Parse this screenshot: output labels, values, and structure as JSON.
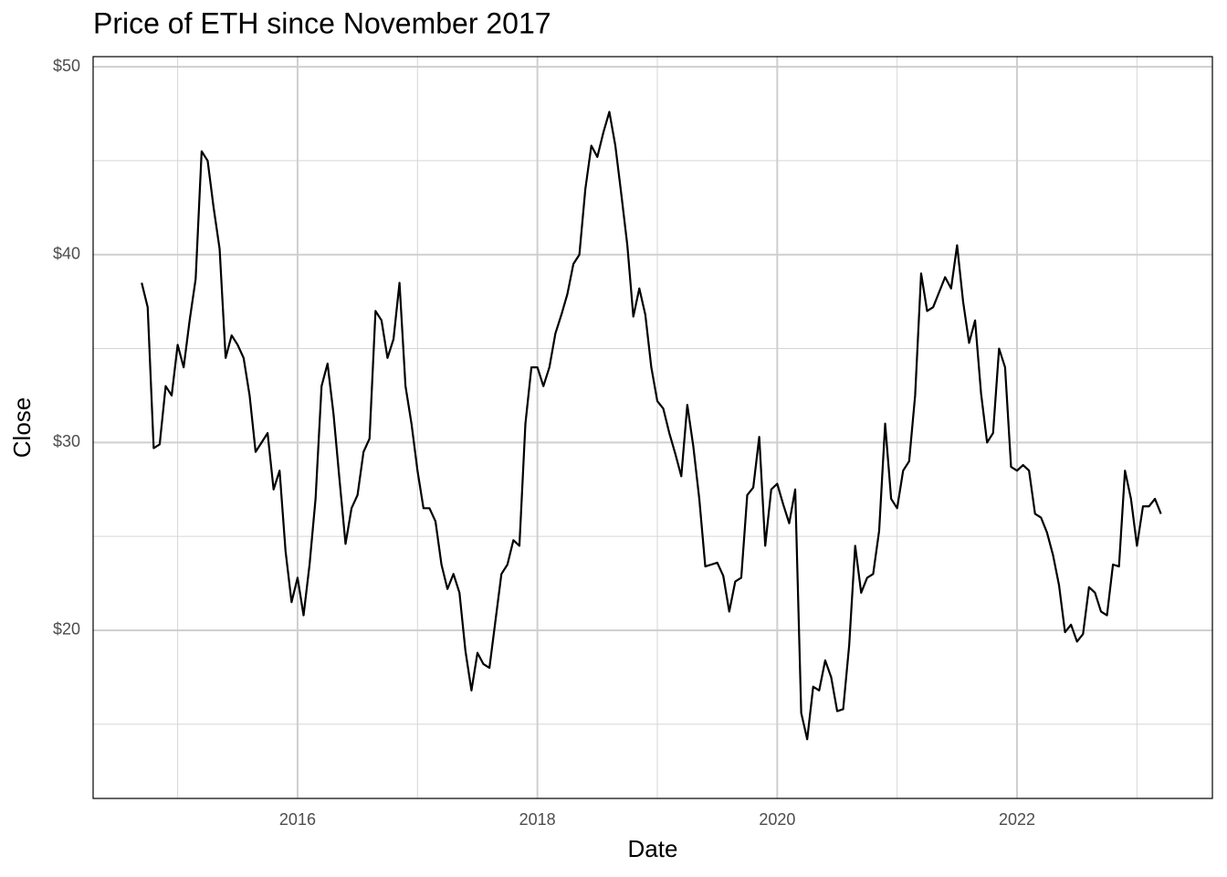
{
  "chart_data": {
    "type": "line",
    "title": "Price of ETH since November 2017",
    "x_label": "Date",
    "y_label": "Close",
    "x": [
      2014.7,
      2014.75,
      2014.8,
      2014.85,
      2014.9,
      2014.95,
      2015,
      2015.05,
      2015.1,
      2015.15,
      2015.2,
      2015.25,
      2015.3,
      2015.35,
      2015.4,
      2015.45,
      2015.5,
      2015.55,
      2015.6,
      2015.65,
      2015.7,
      2015.75,
      2015.8,
      2015.85,
      2015.9,
      2015.95,
      2016,
      2016.05,
      2016.1,
      2016.15,
      2016.2,
      2016.25,
      2016.3,
      2016.35,
      2016.4,
      2016.45,
      2016.5,
      2016.55,
      2016.6,
      2016.65,
      2016.7,
      2016.75,
      2016.8,
      2016.85,
      2016.9,
      2016.95,
      2017,
      2017.05,
      2017.1,
      2017.15,
      2017.2,
      2017.25,
      2017.3,
      2017.35,
      2017.4,
      2017.45,
      2017.5,
      2017.55,
      2017.6,
      2017.65,
      2017.7,
      2017.75,
      2017.8,
      2017.85,
      2017.9,
      2017.95,
      2018,
      2018.05,
      2018.1,
      2018.15,
      2018.2,
      2018.25,
      2018.3,
      2018.35,
      2018.4,
      2018.45,
      2018.5,
      2018.55,
      2018.6,
      2018.65,
      2018.7,
      2018.75,
      2018.8,
      2018.85,
      2018.9,
      2018.95,
      2019,
      2019.05,
      2019.1,
      2019.15,
      2019.2,
      2019.25,
      2019.3,
      2019.35,
      2019.4,
      2019.45,
      2019.5,
      2019.55,
      2019.6,
      2019.65,
      2019.7,
      2019.75,
      2019.8,
      2019.85,
      2019.9,
      2019.95,
      2020,
      2020.05,
      2020.1,
      2020.15,
      2020.2,
      2020.25,
      2020.3,
      2020.35,
      2020.4,
      2020.45,
      2020.5,
      2020.55,
      2020.6,
      2020.65,
      2020.7,
      2020.75,
      2020.8,
      2020.85,
      2020.9,
      2020.95,
      2021,
      2021.05,
      2021.1,
      2021.15,
      2021.2,
      2021.25,
      2021.3,
      2021.35,
      2021.4,
      2021.45,
      2021.5,
      2021.55,
      2021.6,
      2021.65,
      2021.7,
      2021.75,
      2021.8,
      2021.85,
      2021.9,
      2021.95,
      2022,
      2022.05,
      2022.1,
      2022.15,
      2022.2,
      2022.25,
      2022.3,
      2022.35,
      2022.4,
      2022.45,
      2022.5,
      2022.55,
      2022.6,
      2022.65,
      2022.7,
      2022.75,
      2022.8,
      2022.85,
      2022.9,
      2022.95,
      2023,
      2023.05,
      2023.1,
      2023.15,
      2023.2
    ],
    "series": [
      {
        "color": "#000000",
        "values": [
          38.5,
          37.2,
          29.7,
          29.9,
          33,
          32.5,
          35.2,
          34,
          36.5,
          38.7,
          45.5,
          45,
          42.5,
          40.3,
          34.5,
          35.7,
          35.2,
          34.5,
          32.5,
          29.5,
          30,
          30.5,
          27.5,
          28.5,
          24.2,
          21.5,
          22.8,
          20.8,
          23.5,
          27,
          33,
          34.2,
          31.5,
          28,
          24.6,
          26.5,
          27.2,
          29.5,
          30.2,
          37,
          36.5,
          34.5,
          35.5,
          38.5,
          33,
          31,
          28.5,
          26.5,
          26.5,
          25.8,
          23.5,
          22.2,
          23,
          22,
          18.9,
          16.8,
          18.8,
          18.2,
          18,
          20.5,
          23,
          23.5,
          24.8,
          24.5,
          31,
          34,
          34,
          33,
          34,
          35.8,
          36.8,
          37.9,
          39.5,
          40,
          43.5,
          45.8,
          45.2,
          46.5,
          47.6,
          45.8,
          43.2,
          40.5,
          36.7,
          38.2,
          36.8,
          34,
          32.2,
          31.8,
          30.5,
          29.4,
          28.2,
          32,
          29.8,
          27,
          23.4,
          23.5,
          23.6,
          22.9,
          21,
          22.6,
          22.8,
          27.2,
          27.6,
          30.3,
          24.5,
          27.5,
          27.8,
          26.7,
          25.7,
          27.5,
          15.6,
          14.2,
          17,
          16.8,
          18.4,
          17.5,
          15.7,
          15.8,
          19.2,
          24.5,
          22,
          22.8,
          23,
          25.3,
          31,
          27,
          26.5,
          28.5,
          29,
          32.5,
          39,
          37,
          37.2,
          38,
          38.8,
          38.2,
          40.5,
          37.5,
          35.3,
          36.5,
          32.6,
          30,
          30.5,
          35,
          34,
          28.7,
          28.5,
          28.8,
          28.5,
          26.2,
          26,
          25.2,
          24,
          22.4,
          19.9,
          20.3,
          19.4,
          19.8,
          22.3,
          22,
          21,
          20.8,
          23.5,
          23.4,
          28.5,
          27,
          24.5,
          26.6,
          26.6,
          27,
          26.2
        ]
      }
    ],
    "xlim": [
      2014.295,
      2023.629
    ],
    "xticks": [
      2016,
      2018,
      2020,
      2022
    ],
    "ylim": [
      11.05,
      50.54
    ],
    "yticks": [
      {
        "value": 20,
        "label": "$20"
      },
      {
        "value": 30,
        "label": "$30"
      },
      {
        "value": 40,
        "label": "$40"
      },
      {
        "value": 50,
        "label": "$50"
      }
    ],
    "x_minor_gridlines": [
      2015,
      2017,
      2019,
      2021,
      2023
    ],
    "y_minor_gridlines": [
      15,
      25,
      35,
      45
    ],
    "grid": true
  }
}
